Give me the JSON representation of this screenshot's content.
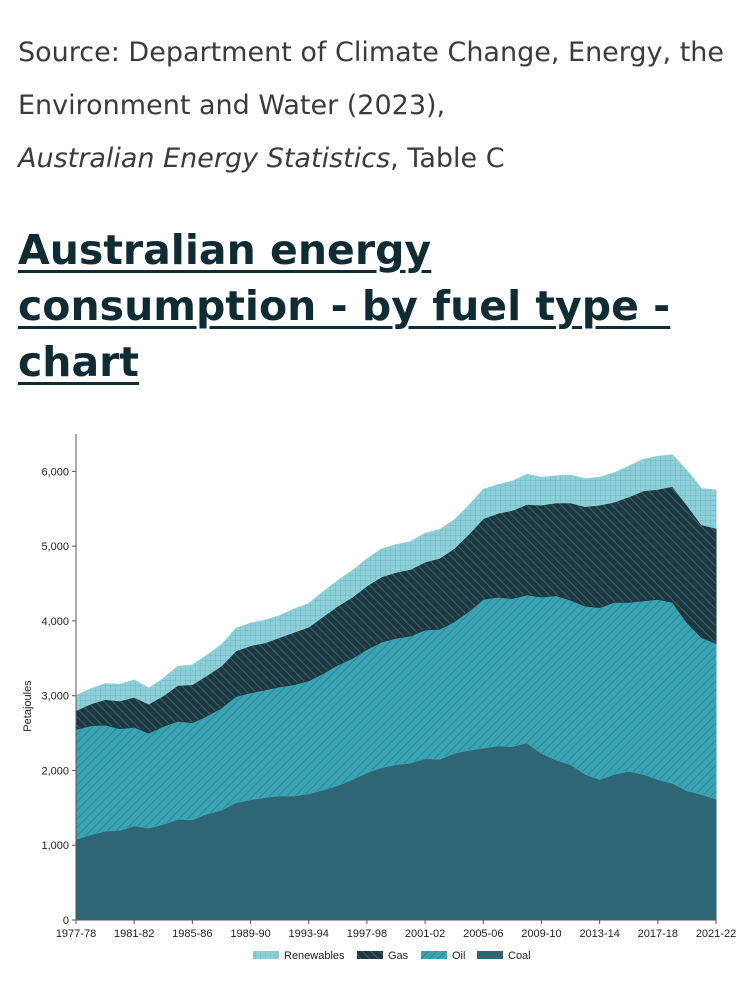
{
  "source": {
    "prefix": "Source: Department of Climate Change, Energy, the Environment and Water (2023),",
    "publication": "Australian Energy Statistics",
    "suffix": ", Table C"
  },
  "heading": "Australian energy consumption - by fuel type - chart",
  "colors": {
    "coal": "#2f6675",
    "oil": "#3aa3b4",
    "gas": "#1e3840",
    "renewables": "#8ed0d8",
    "axis": "#555555"
  },
  "chart_data": {
    "type": "area",
    "stacked": true,
    "title": "",
    "xlabel": "",
    "ylabel": "Petajoules",
    "ylim": [
      0,
      6500
    ],
    "yticks": [
      0,
      1000,
      2000,
      3000,
      4000,
      5000,
      6000
    ],
    "ytick_labels": [
      "0",
      "1,000",
      "2,000",
      "3,000",
      "4,000",
      "5,000",
      "6,000"
    ],
    "categories": [
      "1977-78",
      "1978-79",
      "1979-80",
      "1980-81",
      "1981-82",
      "1982-83",
      "1983-84",
      "1984-85",
      "1985-86",
      "1986-87",
      "1987-88",
      "1988-89",
      "1989-90",
      "1990-91",
      "1991-92",
      "1992-93",
      "1993-94",
      "1994-95",
      "1995-96",
      "1996-97",
      "1997-98",
      "1998-99",
      "1999-00",
      "2000-01",
      "2001-02",
      "2002-03",
      "2003-04",
      "2004-05",
      "2005-06",
      "2006-07",
      "2007-08",
      "2008-09",
      "2009-10",
      "2010-11",
      "2011-12",
      "2012-13",
      "2013-14",
      "2014-15",
      "2015-16",
      "2016-17",
      "2017-18",
      "2018-19",
      "2019-20",
      "2020-21",
      "2021-22"
    ],
    "xtick_labels": [
      "1977-78",
      "1981-82",
      "1985-86",
      "1989-90",
      "1993-94",
      "1997-98",
      "2001-02",
      "2005-06",
      "2009-10",
      "2013-14",
      "2017-18",
      "2021-22"
    ],
    "legend": [
      "Renewables",
      "Gas",
      "Oil",
      "Coal"
    ],
    "legend_position": "bottom",
    "series": [
      {
        "name": "Coal",
        "key": "coal",
        "values": [
          1080,
          1140,
          1190,
          1200,
          1260,
          1230,
          1280,
          1350,
          1340,
          1420,
          1470,
          1570,
          1610,
          1640,
          1660,
          1660,
          1690,
          1740,
          1800,
          1880,
          1970,
          2040,
          2080,
          2100,
          2160,
          2150,
          2230,
          2270,
          2300,
          2330,
          2320,
          2370,
          2230,
          2140,
          2080,
          1950,
          1880,
          1950,
          1990,
          1950,
          1880,
          1830,
          1730,
          1680,
          1620
        ]
      },
      {
        "name": "Oil",
        "key": "oil",
        "values": [
          1470,
          1460,
          1420,
          1360,
          1320,
          1270,
          1310,
          1310,
          1300,
          1310,
          1370,
          1420,
          1430,
          1440,
          1460,
          1490,
          1510,
          1560,
          1610,
          1620,
          1650,
          1680,
          1690,
          1700,
          1720,
          1740,
          1760,
          1860,
          1990,
          1990,
          1980,
          1980,
          2090,
          2200,
          2200,
          2250,
          2300,
          2300,
          2260,
          2320,
          2410,
          2420,
          2250,
          2100,
          2080
        ]
      },
      {
        "name": "Gas",
        "key": "gas",
        "values": [
          250,
          290,
          340,
          370,
          400,
          390,
          410,
          480,
          510,
          540,
          560,
          610,
          630,
          630,
          660,
          700,
          720,
          760,
          790,
          820,
          850,
          870,
          880,
          890,
          910,
          950,
          980,
          1030,
          1080,
          1120,
          1180,
          1210,
          1230,
          1240,
          1300,
          1330,
          1370,
          1340,
          1410,
          1470,
          1470,
          1550,
          1570,
          1510,
          1540
        ]
      },
      {
        "name": "Renewables",
        "key": "renewables",
        "values": [
          200,
          200,
          210,
          220,
          230,
          210,
          230,
          250,
          260,
          270,
          280,
          300,
          300,
          300,
          290,
          310,
          310,
          330,
          340,
          350,
          360,
          370,
          370,
          370,
          380,
          380,
          380,
          380,
          390,
          380,
          390,
          400,
          370,
          360,
          370,
          370,
          370,
          390,
          410,
          420,
          440,
          420,
          460,
          480,
          510
        ]
      }
    ]
  }
}
